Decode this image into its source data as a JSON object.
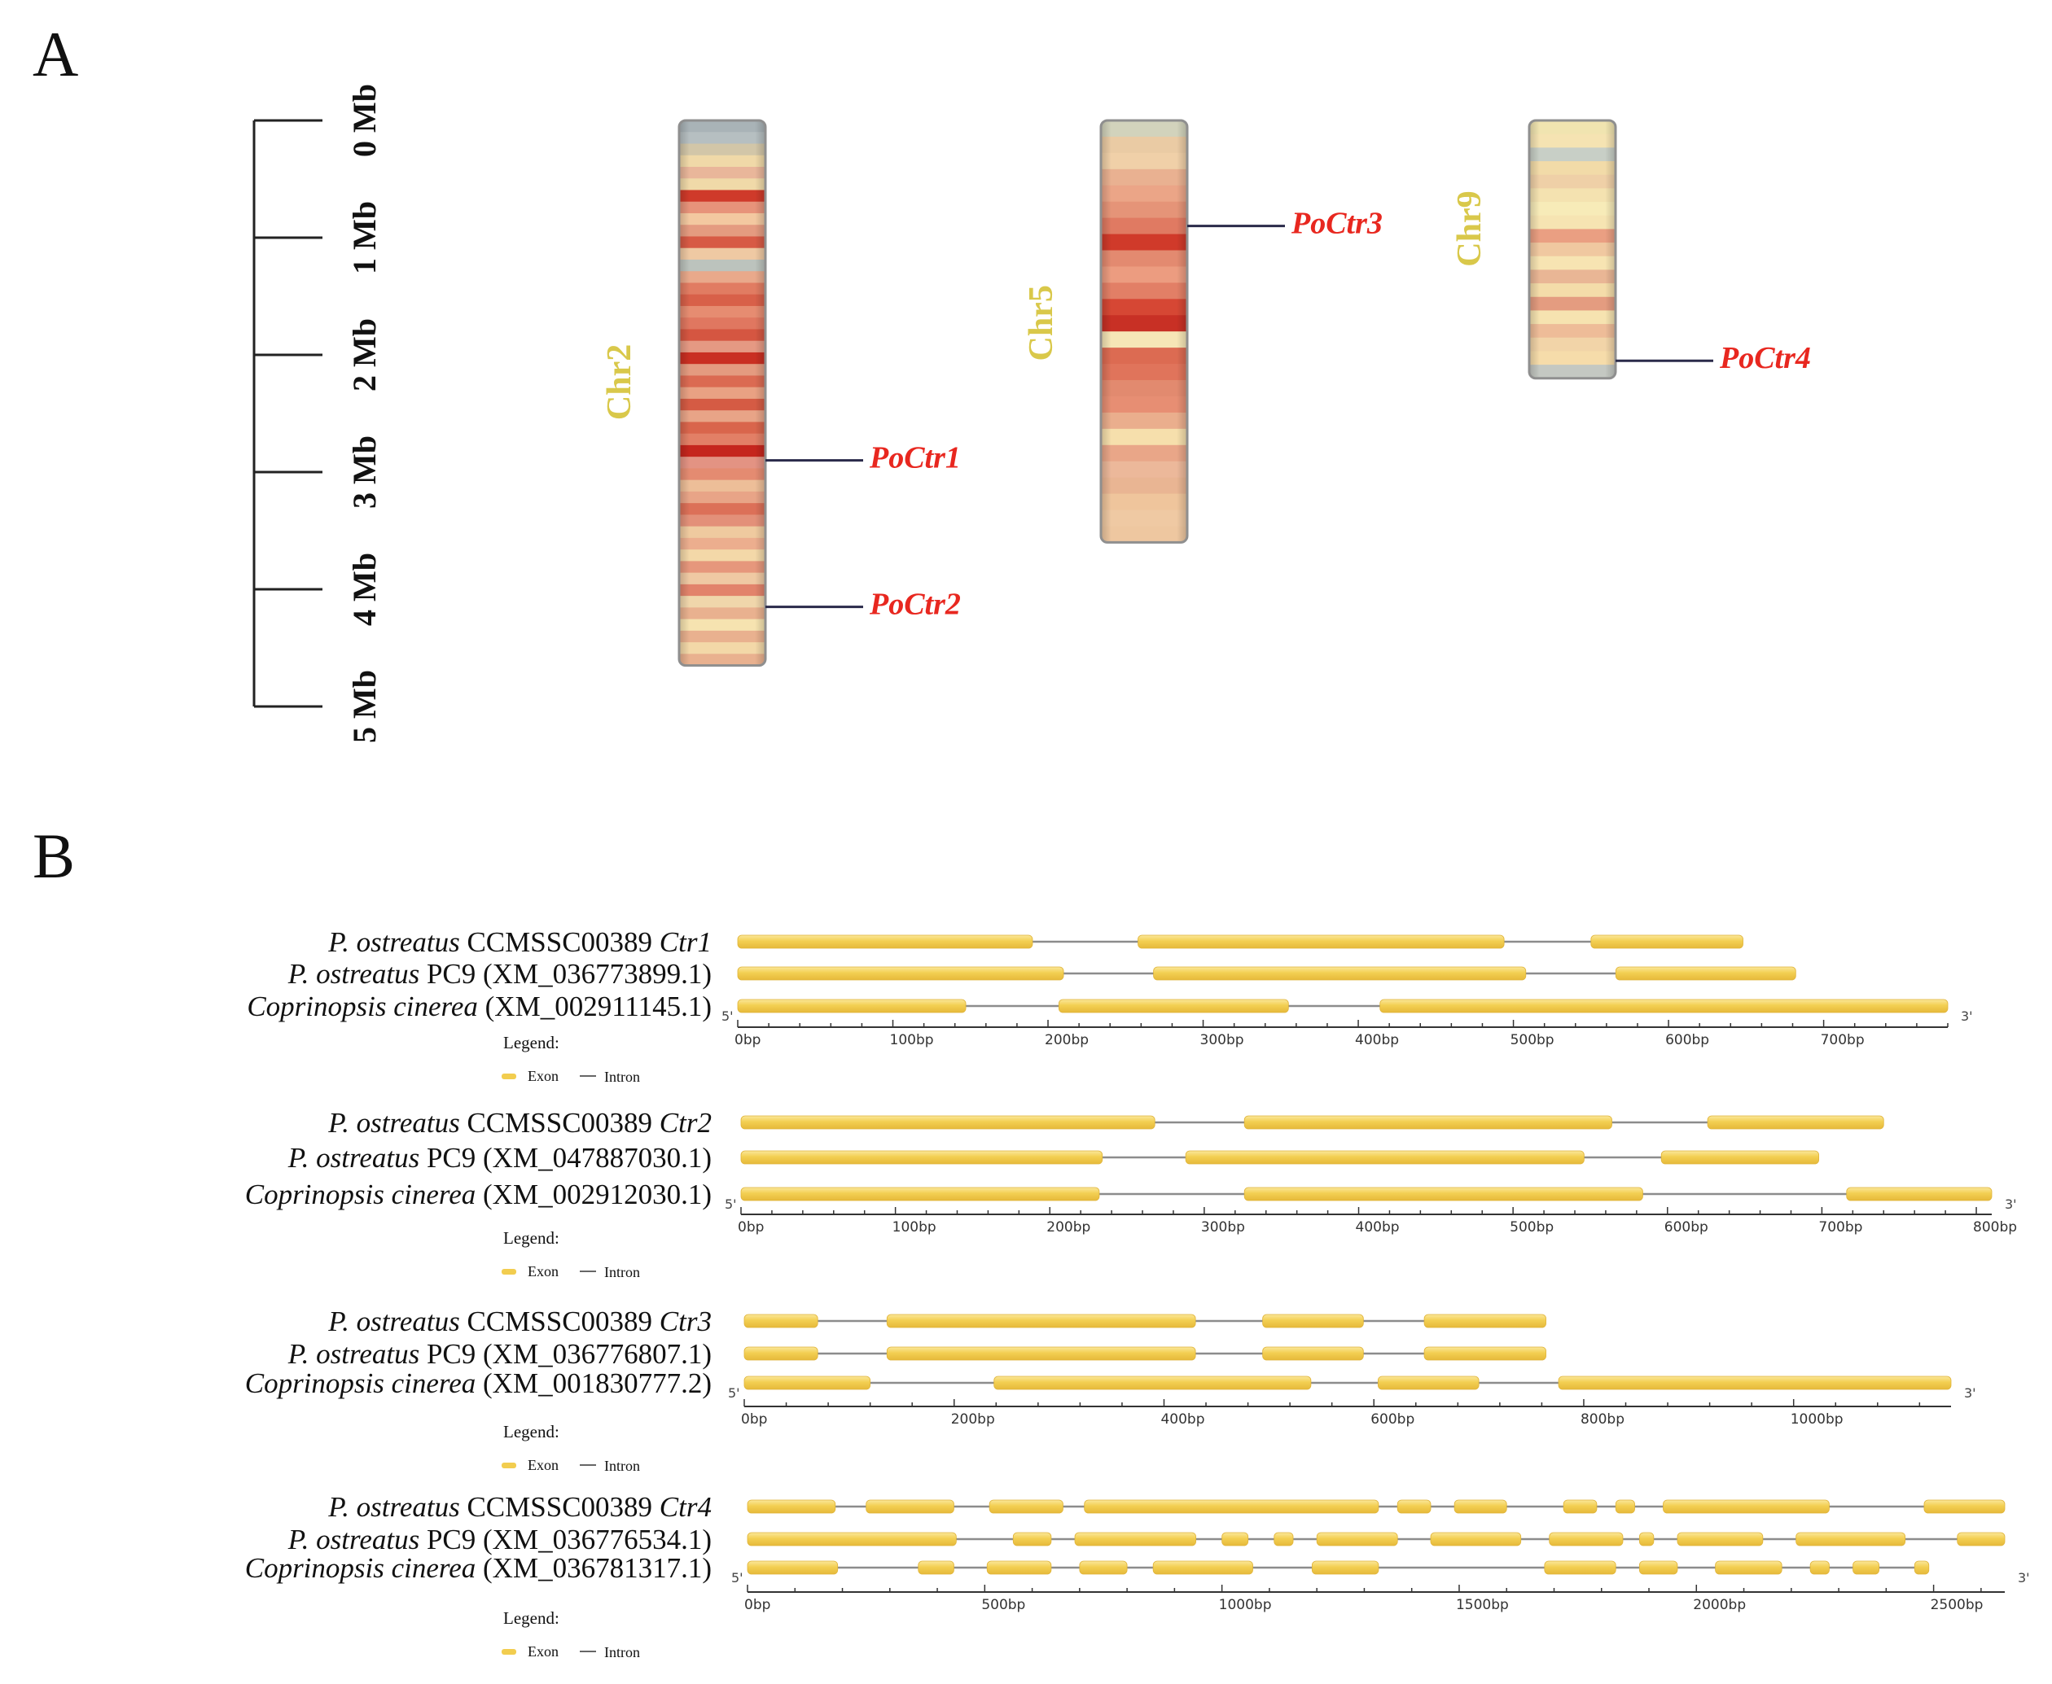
{
  "panel_a": {
    "label": "A",
    "scale": {
      "ticks": [
        "0 Mb",
        "1 Mb",
        "2 Mb",
        "3 Mb",
        "4 Mb",
        "5 Mb"
      ]
    },
    "chromosomes": [
      {
        "name": "Chr2",
        "length_mb": 4.65,
        "genes": [
          {
            "name": "PoCtr1",
            "pos_mb": 2.9
          },
          {
            "name": "PoCtr2",
            "pos_mb": 4.15
          }
        ],
        "bands": [
          "#a9b3b7",
          "#b6bfc1",
          "#d2c6a8",
          "#f0d9a8",
          "#e9b69a",
          "#f0d9a8",
          "#cf3a2a",
          "#e7937a",
          "#f3c8a0",
          "#e49b80",
          "#d75a45",
          "#efc9a3",
          "#bcc3bd",
          "#e9a98b",
          "#e17c62",
          "#d86049",
          "#e68c71",
          "#e07760",
          "#d55641",
          "#e59983",
          "#c92f22",
          "#e49b80",
          "#db6a52",
          "#e9a183",
          "#d55b44",
          "#e8a487",
          "#d9654c",
          "#e27f66",
          "#c5261d",
          "#e39383",
          "#e48b71",
          "#edbe98",
          "#e8a487",
          "#dc7058",
          "#e39079",
          "#efca9f",
          "#ecae8e",
          "#f3d8a8",
          "#e6977c",
          "#efc9a3",
          "#e2836b",
          "#f0d6ab",
          "#e9b18f",
          "#f6e3b0",
          "#e9b18f",
          "#f3d8a8",
          "#e9b18f"
        ]
      },
      {
        "name": "Chr5",
        "length_mb": 3.6,
        "genes": [
          {
            "name": "PoCtr3",
            "pos_mb": 0.9
          }
        ],
        "bands": [
          "#d2d3bc",
          "#eacba4",
          "#f0d0a8",
          "#e9b191",
          "#eba587",
          "#e59478",
          "#e07a62",
          "#d03a2a",
          "#e38a70",
          "#ec9c80",
          "#e27f66",
          "#d64734",
          "#c83025",
          "#f6e6b6",
          "#dc6b52",
          "#e0745b",
          "#e28a6f",
          "#e78e73",
          "#eaae8d",
          "#f6dfac",
          "#e9a688",
          "#ecb89a",
          "#e9b593",
          "#efc59c",
          "#efc9a3",
          "#eec7a0"
        ]
      },
      {
        "name": "Chr9",
        "length_mb": 2.2,
        "genes": [
          {
            "name": "PoCtr4",
            "pos_mb": 2.05
          }
        ],
        "bands": [
          "#f0e4b0",
          "#f5e3b2",
          "#c8cfc6",
          "#f2dba8",
          "#efd0a7",
          "#f4e2b0",
          "#f7ebb8",
          "#f6e4b2",
          "#ea9f82",
          "#f0c8a0",
          "#f7e4b2",
          "#e9b695",
          "#f4dca9",
          "#e49c80",
          "#f6e3b0",
          "#eebc98",
          "#f2d4a8",
          "#f6dcaa",
          "#c4c8c2"
        ]
      }
    ]
  },
  "panel_b": {
    "label": "B",
    "legend_title": "Legend:",
    "legend_exon": "Exon",
    "legend_intron": "Intron",
    "five_prime": "5'",
    "three_prime": "3'",
    "groups": [
      {
        "axis_max": 780,
        "tick_step": 100,
        "tick_end": 700,
        "tick_labels": [
          "0bp",
          "100bp",
          "200bp",
          "300bp",
          "400bp",
          "500bp",
          "600bp",
          "700bp"
        ],
        "genes": [
          {
            "species": "P. ostreatus",
            "strain": "CCMSSC00389",
            "id": "Ctr1",
            "id_italic": true,
            "length": 648,
            "exons": [
              [
                0,
                190
              ],
              [
                258,
                494
              ],
              [
                550,
                648
              ]
            ]
          },
          {
            "species": "P. ostreatus",
            "strain": "PC9",
            "id": "(XM_036773899.1)",
            "id_italic": false,
            "length": 682,
            "exons": [
              [
                0,
                210
              ],
              [
                268,
                508
              ],
              [
                566,
                682
              ]
            ]
          },
          {
            "species": "Coprinopsis cinerea",
            "strain": "",
            "id": "(XM_002911145.1)",
            "id_italic": false,
            "length": 780,
            "exons": [
              [
                0,
                147
              ],
              [
                207,
                355
              ],
              [
                414,
                780
              ]
            ]
          }
        ]
      },
      {
        "axis_max": 810,
        "tick_step": 100,
        "tick_end": 800,
        "tick_labels": [
          "0bp",
          "100bp",
          "200bp",
          "300bp",
          "400bp",
          "500bp",
          "600bp",
          "700bp",
          "800bp"
        ],
        "genes": [
          {
            "species": "P. ostreatus",
            "strain": "CCMSSC00389",
            "id": "Ctr2",
            "id_italic": true,
            "length": 740,
            "exons": [
              [
                0,
                268
              ],
              [
                326,
                564
              ],
              [
                626,
                740
              ]
            ]
          },
          {
            "species": "P. ostreatus",
            "strain": "PC9",
            "id": "(XM_047887030.1)",
            "id_italic": false,
            "length": 698,
            "exons": [
              [
                0,
                234
              ],
              [
                288,
                546
              ],
              [
                596,
                698
              ]
            ]
          },
          {
            "species": "Coprinopsis cinerea",
            "strain": "",
            "id": "(XM_002912030.1)",
            "id_italic": false,
            "length": 810,
            "exons": [
              [
                0,
                232
              ],
              [
                326,
                584
              ],
              [
                716,
                810
              ]
            ]
          }
        ]
      },
      {
        "axis_max": 1150,
        "tick_step": 200,
        "tick_end": 1000,
        "tick_labels": [
          "0bp",
          "200bp",
          "400bp",
          "600bp",
          "800bp",
          "1000bp"
        ],
        "genes": [
          {
            "species": "P. ostreatus",
            "strain": "CCMSSC00389",
            "id": "Ctr3",
            "id_italic": true,
            "length": 764,
            "exons": [
              [
                0,
                70
              ],
              [
                136,
                430
              ],
              [
                494,
                590
              ],
              [
                648,
                764
              ]
            ]
          },
          {
            "species": "P. ostreatus",
            "strain": "PC9",
            "id": "(XM_036776807.1)",
            "id_italic": false,
            "length": 764,
            "exons": [
              [
                0,
                70
              ],
              [
                136,
                430
              ],
              [
                494,
                590
              ],
              [
                648,
                764
              ]
            ]
          },
          {
            "species": "Coprinopsis cinerea",
            "strain": "",
            "id": "(XM_001830777.2)",
            "id_italic": false,
            "length": 1150,
            "exons": [
              [
                0,
                120
              ],
              [
                238,
                540
              ],
              [
                604,
                700
              ],
              [
                776,
                1150
              ]
            ]
          }
        ]
      },
      {
        "axis_max": 2650,
        "tick_step": 500,
        "tick_end": 2500,
        "tick_labels": [
          "0bp",
          "500bp",
          "1000bp",
          "1500bp",
          "2000bp",
          "2500bp"
        ],
        "genes": [
          {
            "species": "P. ostreatus",
            "strain": "CCMSSC00389",
            "id": "Ctr4",
            "id_italic": true,
            "length": 2650,
            "exons": [
              [
                0,
                185
              ],
              [
                250,
                435
              ],
              [
                510,
                665
              ],
              [
                710,
                1330
              ],
              [
                1370,
                1440
              ],
              [
                1490,
                1600
              ],
              [
                1720,
                1790
              ],
              [
                1830,
                1870
              ],
              [
                1930,
                2280
              ],
              [
                2480,
                2650
              ]
            ]
          },
          {
            "species": "P. ostreatus",
            "strain": "PC9",
            "id": "(XM_036776534.1)",
            "id_italic": false,
            "length": 2650,
            "exons": [
              [
                0,
                440
              ],
              [
                560,
                640
              ],
              [
                690,
                945
              ],
              [
                1000,
                1055
              ],
              [
                1110,
                1150
              ],
              [
                1200,
                1370
              ],
              [
                1440,
                1630
              ],
              [
                1690,
                1845
              ],
              [
                1880,
                1910
              ],
              [
                1960,
                2140
              ],
              [
                2210,
                2440
              ],
              [
                2550,
                2650
              ]
            ]
          },
          {
            "species": "Coprinopsis cinerea",
            "strain": "",
            "id": "(XM_036781317.1)",
            "id_italic": false,
            "length": 2490,
            "exons": [
              [
                0,
                190
              ],
              [
                360,
                435
              ],
              [
                505,
                640
              ],
              [
                700,
                800
              ],
              [
                855,
                1065
              ],
              [
                1190,
                1330
              ],
              [
                1680,
                1830
              ],
              [
                1880,
                1960
              ],
              [
                2040,
                2180
              ],
              [
                2240,
                2280
              ],
              [
                2330,
                2385
              ],
              [
                2460,
                2490
              ]
            ]
          }
        ]
      }
    ]
  },
  "colors": {
    "exon": "#f2cd4f",
    "exon_light": "#f7e07a",
    "intron": "#8c8c8c",
    "gene_label": "#e8271f",
    "chr_label": "#d9c84a",
    "leader": "#2a2a4a",
    "text": "#111111"
  }
}
